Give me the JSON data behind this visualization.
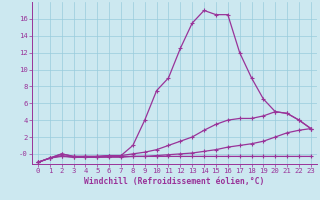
{
  "xlabel": "Windchill (Refroidissement éolien,°C)",
  "bg_color": "#cce8f0",
  "line_color": "#993399",
  "grid_color": "#99ccdd",
  "x": [
    0,
    1,
    2,
    3,
    4,
    5,
    6,
    7,
    8,
    9,
    10,
    11,
    12,
    13,
    14,
    15,
    16,
    17,
    18,
    19,
    20,
    21,
    22,
    23
  ],
  "line1": [
    -1,
    -0.5,
    -0.3,
    -0.4,
    -0.4,
    -0.4,
    -0.4,
    -0.4,
    -0.3,
    -0.3,
    -0.3,
    -0.3,
    -0.3,
    -0.3,
    -0.3,
    -0.3,
    -0.3,
    -0.3,
    -0.3,
    -0.3,
    -0.3,
    -0.3,
    -0.3,
    -0.3
  ],
  "line2": [
    -1,
    -0.5,
    -0.2,
    -0.4,
    -0.4,
    -0.4,
    -0.3,
    -0.3,
    -0.3,
    -0.3,
    -0.2,
    -0.1,
    0.0,
    0.1,
    0.3,
    0.5,
    0.8,
    1.0,
    1.2,
    1.5,
    2.0,
    2.5,
    2.8,
    3.0
  ],
  "line3": [
    -1,
    -0.5,
    0.0,
    -0.3,
    -0.3,
    -0.3,
    -0.2,
    -0.2,
    0.0,
    0.2,
    0.5,
    1.0,
    1.5,
    2.0,
    2.8,
    3.5,
    4.0,
    4.2,
    4.2,
    4.5,
    5.0,
    4.8,
    4.0,
    3.0
  ],
  "line4": [
    -1,
    -0.5,
    0.0,
    -0.3,
    -0.3,
    -0.3,
    -0.2,
    -0.2,
    1.0,
    4.0,
    7.5,
    9.0,
    12.5,
    15.5,
    17.0,
    16.5,
    16.5,
    12.0,
    9.0,
    6.5,
    5.0,
    4.8,
    4.0,
    3.0
  ],
  "ylim": [
    -1.2,
    18
  ],
  "ytick_vals": [
    0,
    2,
    4,
    6,
    8,
    10,
    12,
    14,
    16
  ],
  "ytick_labels": [
    "-0",
    "2",
    "4",
    "6",
    "8",
    "10",
    "12",
    "14",
    "16"
  ],
  "xtick_vals": [
    0,
    1,
    2,
    3,
    4,
    5,
    6,
    7,
    8,
    9,
    10,
    11,
    12,
    13,
    14,
    15,
    16,
    17,
    18,
    19,
    20,
    21,
    22,
    23
  ],
  "xtick_labels": [
    "0",
    "1",
    "2",
    "3",
    "4",
    "5",
    "6",
    "7",
    "8",
    "9",
    "10",
    "11",
    "12",
    "13",
    "14",
    "15",
    "16",
    "17",
    "18",
    "19",
    "20",
    "21",
    "22",
    "23"
  ],
  "tick_fontsize": 5.2,
  "xlabel_fontsize": 5.8,
  "marker_size": 2.5,
  "linewidth": 0.9
}
